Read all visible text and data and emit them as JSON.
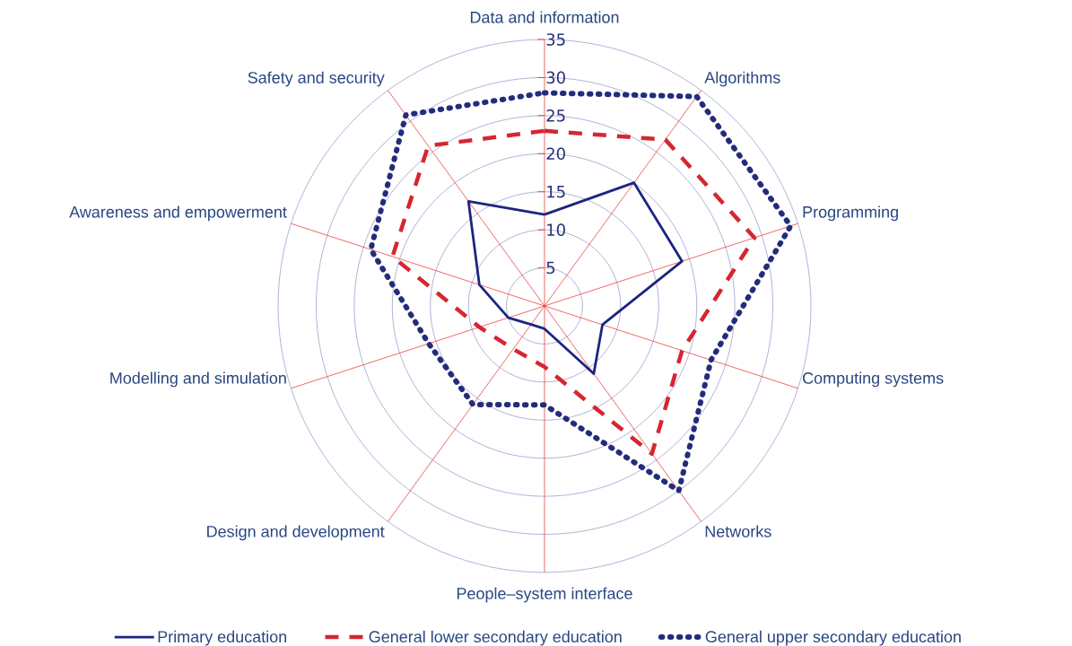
{
  "chart_data": {
    "type": "radar",
    "categories": [
      "Data and information",
      "Algorithms",
      "Programming",
      "Computing systems",
      "Networks",
      "People–system interface",
      "Design and development",
      "Modelling and simulation",
      "Awareness and empowerment",
      "Safety and security"
    ],
    "series": [
      {
        "name": "Primary education",
        "color": "#1c2580",
        "line_style": "solid",
        "values": [
          12,
          20,
          19,
          8,
          11,
          3,
          3,
          5,
          9,
          17
        ]
      },
      {
        "name": "General lower secondary education",
        "color": "#d62630",
        "line_style": "dashed",
        "values": [
          23,
          27,
          29,
          19,
          24,
          8,
          7,
          9,
          21,
          26
        ]
      },
      {
        "name": "General upper secondary education",
        "color": "#232c7c",
        "line_style": "dotted",
        "values": [
          28,
          34,
          34,
          23,
          30,
          13,
          16,
          16,
          24,
          31
        ]
      }
    ],
    "ylim": [
      0,
      35
    ],
    "yticks": [
      5,
      10,
      15,
      20,
      25,
      30,
      35
    ],
    "grid": true,
    "legend": "bottom"
  }
}
